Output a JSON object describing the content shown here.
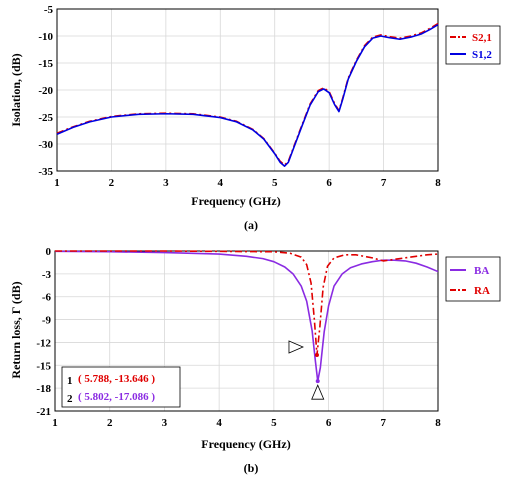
{
  "chart_data": [
    {
      "panel_label": "(a)",
      "type": "line",
      "title": "",
      "xlabel": "Frequency (GHz)",
      "ylabel": "Isolation, (dB)",
      "xlim": [
        1,
        8
      ],
      "ylim": [
        -35,
        -5
      ],
      "xticks": [
        "1",
        "2",
        "3",
        "4",
        "5",
        "6",
        "7",
        "8"
      ],
      "yticks": [
        "-5",
        "-10",
        "-15",
        "-20",
        "-25",
        "-30",
        "-35"
      ],
      "grid": true,
      "legend_position": "outside-right",
      "series": [
        {
          "name": "S2,1",
          "color": "#e00000",
          "dash": "dash-dot",
          "x": [
            1,
            1.3,
            1.6,
            2,
            2.5,
            3,
            3.5,
            4,
            4.3,
            4.6,
            4.8,
            5.0,
            5.1,
            5.18,
            5.25,
            5.35,
            5.5,
            5.65,
            5.8,
            5.9,
            6.0,
            6.1,
            6.18,
            6.25,
            6.35,
            6.5,
            6.65,
            6.8,
            6.95,
            7.1,
            7.3,
            7.5,
            7.7,
            7.85,
            8.0
          ],
          "values": [
            -28.0,
            -26.8,
            -25.8,
            -24.9,
            -24.4,
            -24.3,
            -24.4,
            -25.0,
            -25.8,
            -27.3,
            -29.0,
            -31.7,
            -33.2,
            -33.9,
            -33.2,
            -30.5,
            -26.5,
            -22.6,
            -20.1,
            -19.6,
            -20.3,
            -22.5,
            -23.8,
            -21.5,
            -17.8,
            -14.5,
            -11.8,
            -10.2,
            -9.8,
            -10.1,
            -10.4,
            -10.0,
            -9.4,
            -8.6,
            -7.7
          ]
        },
        {
          "name": "S1,2",
          "color": "#0000e0",
          "dash": "solid",
          "x": [
            1,
            1.3,
            1.6,
            2,
            2.5,
            3,
            3.5,
            4,
            4.3,
            4.6,
            4.8,
            5.0,
            5.1,
            5.18,
            5.25,
            5.35,
            5.5,
            5.65,
            5.8,
            5.9,
            6.0,
            6.1,
            6.18,
            6.25,
            6.35,
            6.5,
            6.65,
            6.8,
            6.95,
            7.1,
            7.3,
            7.5,
            7.7,
            7.85,
            8.0
          ],
          "values": [
            -28.2,
            -26.9,
            -25.9,
            -25.0,
            -24.5,
            -24.4,
            -24.5,
            -25.1,
            -25.9,
            -27.4,
            -29.1,
            -31.8,
            -33.4,
            -34.1,
            -33.4,
            -30.7,
            -26.7,
            -22.8,
            -20.3,
            -19.8,
            -20.5,
            -22.7,
            -24.0,
            -21.7,
            -18.0,
            -14.7,
            -12.0,
            -10.4,
            -10.0,
            -10.3,
            -10.6,
            -10.2,
            -9.6,
            -8.8,
            -7.9
          ]
        }
      ]
    },
    {
      "panel_label": "(b)",
      "type": "line",
      "title": "",
      "xlabel": "Frequency (GHz)",
      "ylabel": "Return loss, Γ (dB)",
      "xlim": [
        1,
        8
      ],
      "ylim": [
        -21,
        0
      ],
      "xticks": [
        "1",
        "2",
        "3",
        "4",
        "5",
        "6",
        "7",
        "8"
      ],
      "yticks": [
        "0",
        "-3",
        "-6",
        "-9",
        "-12",
        "-15",
        "-18",
        "-21"
      ],
      "grid": true,
      "legend_position": "outside-right",
      "series": [
        {
          "name": "BA",
          "color": "#8a2be2",
          "dash": "solid",
          "x": [
            1,
            2,
            3,
            4,
            4.5,
            4.8,
            5.0,
            5.2,
            5.35,
            5.5,
            5.6,
            5.7,
            5.76,
            5.802,
            5.85,
            5.92,
            6.0,
            6.1,
            6.25,
            6.4,
            6.6,
            6.8,
            7.0,
            7.2,
            7.4,
            7.6,
            7.8,
            8.0
          ],
          "values": [
            -0.05,
            -0.1,
            -0.2,
            -0.4,
            -0.7,
            -1.0,
            -1.4,
            -2.1,
            -3.0,
            -4.6,
            -6.6,
            -10.5,
            -14.5,
            -17.086,
            -15.3,
            -10.6,
            -7.2,
            -4.6,
            -3.0,
            -2.2,
            -1.7,
            -1.4,
            -1.2,
            -1.2,
            -1.3,
            -1.6,
            -2.1,
            -2.7
          ]
        },
        {
          "name": "RA",
          "color": "#e00000",
          "dash": "dash-dot",
          "x": [
            1,
            2,
            3,
            4,
            5,
            5.3,
            5.5,
            5.6,
            5.68,
            5.74,
            5.788,
            5.84,
            5.9,
            5.98,
            6.1,
            6.3,
            6.5,
            6.8,
            7.0,
            7.2,
            7.5,
            7.8,
            8.0
          ],
          "values": [
            0,
            0,
            0,
            -0.05,
            -0.1,
            -0.3,
            -0.8,
            -1.8,
            -4.2,
            -9.0,
            -13.646,
            -10.0,
            -4.8,
            -2.0,
            -0.9,
            -0.5,
            -0.5,
            -0.9,
            -1.3,
            -1.1,
            -0.8,
            -0.5,
            -0.4
          ]
        }
      ],
      "annotations": [
        {
          "marker": "1",
          "text": "( 5.788, -13.646 )",
          "color": "#e00000",
          "x": 5.788,
          "y": -13.646
        },
        {
          "marker": "2",
          "text": "( 5.802, -17.086 )",
          "color": "#8a2be2",
          "x": 5.802,
          "y": -17.086
        }
      ]
    }
  ]
}
